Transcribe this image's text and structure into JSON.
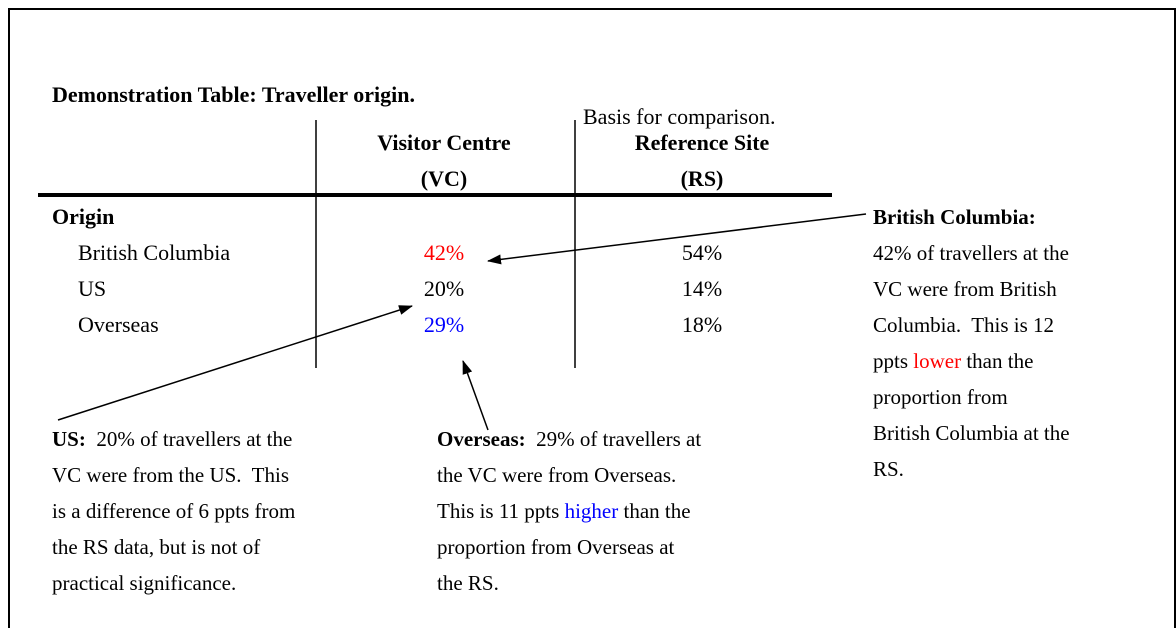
{
  "title": "Demonstration Table: Traveller origin.",
  "basis_note": "Basis for comparison.",
  "table": {
    "headers": [
      [
        "Visitor Centre",
        "(VC)"
      ],
      [
        "Reference Site",
        "(RS)"
      ]
    ],
    "section": "Origin",
    "rows": [
      [
        "British Columbia",
        {
          "text": "42%",
          "color": "#ff0000"
        },
        {
          "text": "54%"
        }
      ],
      [
        "US",
        {
          "text": "20%"
        },
        {
          "text": "14%"
        }
      ],
      [
        "Overseas",
        {
          "text": "29%",
          "color": "#0000ff"
        },
        {
          "text": "18%"
        }
      ]
    ]
  },
  "annotations": [
    {
      "heading": "British Columbia:",
      "lines": [
        [
          {
            "text": "42% of travellers at the"
          }
        ],
        [
          {
            "text": "VC were from British"
          }
        ],
        [
          {
            "text": "Columbia.  This is 12"
          }
        ],
        [
          {
            "text": "ppts "
          },
          {
            "text": "lower",
            "color": "#ff0000"
          },
          {
            "text": " than the"
          }
        ],
        [
          {
            "text": "proportion from"
          }
        ],
        [
          {
            "text": "British Columbia at the"
          }
        ],
        [
          {
            "text": "RS."
          }
        ]
      ]
    },
    {
      "heading": "US:",
      "lines": [
        [
          {
            "text": "  20% of travellers at the"
          }
        ],
        [
          {
            "text": "VC were from the US.  This"
          }
        ],
        [
          {
            "text": "is a difference of 6 ppts from"
          }
        ],
        [
          {
            "text": "the RS data, but is not of"
          }
        ],
        [
          {
            "text": "practical significance."
          }
        ]
      ]
    },
    {
      "heading": "Overseas:",
      "lines": [
        [
          {
            "text": "  29% of travellers at"
          }
        ],
        [
          {
            "text": "the VC were from Overseas."
          }
        ],
        [
          {
            "text": "This is 11 ppts "
          },
          {
            "text": "higher",
            "color": "#0000ff"
          },
          {
            "text": " than the"
          }
        ],
        [
          {
            "text": "proportion from Overseas at"
          }
        ],
        [
          {
            "text": "the RS."
          }
        ]
      ]
    }
  ]
}
